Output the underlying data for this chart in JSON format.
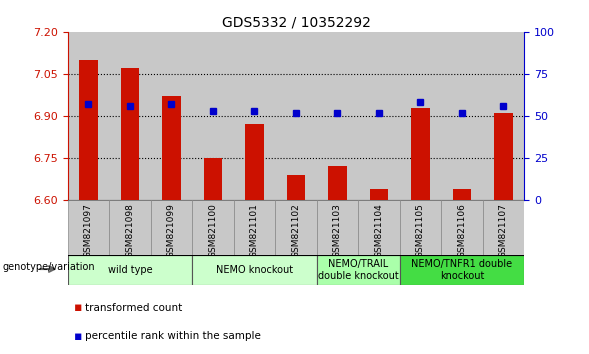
{
  "title": "GDS5332 / 10352292",
  "samples": [
    "GSM821097",
    "GSM821098",
    "GSM821099",
    "GSM821100",
    "GSM821101",
    "GSM821102",
    "GSM821103",
    "GSM821104",
    "GSM821105",
    "GSM821106",
    "GSM821107"
  ],
  "transformed_counts": [
    7.1,
    7.07,
    6.97,
    6.75,
    6.87,
    6.69,
    6.72,
    6.64,
    6.93,
    6.64,
    6.91
  ],
  "percentile_ranks": [
    57,
    56,
    57,
    53,
    53,
    52,
    52,
    52,
    58,
    52,
    56
  ],
  "ylim_left": [
    6.6,
    7.2
  ],
  "ylim_right": [
    0,
    100
  ],
  "yticks_left": [
    6.6,
    6.75,
    6.9,
    7.05,
    7.2
  ],
  "yticks_right": [
    0,
    25,
    50,
    75,
    100
  ],
  "bar_color": "#cc1100",
  "dot_color": "#0000cc",
  "col_bg_color": "#cccccc",
  "genotype_groups": [
    {
      "label": "wild type",
      "start": 0,
      "end": 2,
      "color": "#ccffcc"
    },
    {
      "label": "NEMO knockout",
      "start": 3,
      "end": 5,
      "color": "#ccffcc"
    },
    {
      "label": "NEMO/TRAIL\ndouble knockout",
      "start": 6,
      "end": 7,
      "color": "#aaffaa"
    },
    {
      "label": "NEMO/TNFR1 double\nknockout",
      "start": 8,
      "end": 10,
      "color": "#44dd44"
    }
  ],
  "genotype_label": "genotype/variation",
  "legend_transformed": "transformed count",
  "legend_percentile": "percentile rank within the sample",
  "left_axis_color": "#cc1100",
  "right_axis_color": "#0000cc"
}
